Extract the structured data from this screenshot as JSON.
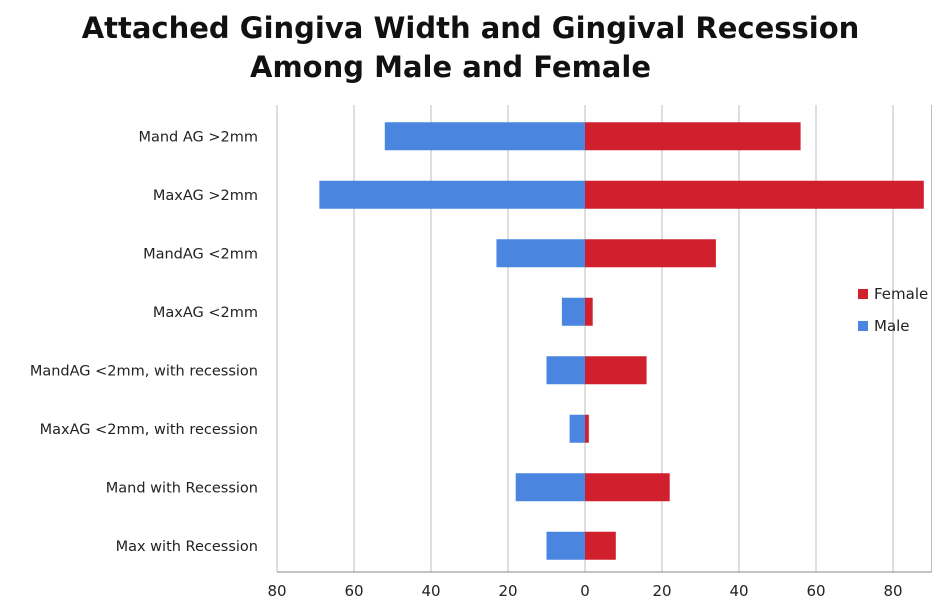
{
  "title_lines": [
    "Attached Gingiva Width and Gingival Recession",
    "Among Male and Female"
  ],
  "colors": {
    "male": "#4a86e0",
    "female": "#d0202e",
    "grid": "#bdbdbd"
  },
  "chart_data": {
    "type": "bar",
    "orientation": "horizontal",
    "title": "Attached Gingiva Width and Gingival Recession Among Male and Female",
    "xlabel": "",
    "ylabel": "",
    "xlim": [
      -80,
      90
    ],
    "xticks": [
      -80,
      -60,
      -40,
      -20,
      0,
      20,
      40,
      60,
      80
    ],
    "xtick_labels": [
      "80",
      "60",
      "40",
      "20",
      "0",
      "20",
      "40",
      "60",
      "80"
    ],
    "grid": true,
    "legend_position": "right",
    "categories": [
      "Mand AG >2mm",
      "MaxAG >2mm",
      "MandAG <2mm",
      "MaxAG <2mm",
      "MandAG <2mm, with recession",
      "MaxAG <2mm, with recession",
      "Mand with Recession",
      "Max with Recession"
    ],
    "series": [
      {
        "name": "Female",
        "values": [
          56,
          88,
          34,
          2,
          16,
          1,
          22,
          8
        ]
      },
      {
        "name": "Male",
        "values": [
          -52,
          -69,
          -23,
          -6,
          -10,
          -4,
          -18,
          -10
        ]
      }
    ]
  }
}
